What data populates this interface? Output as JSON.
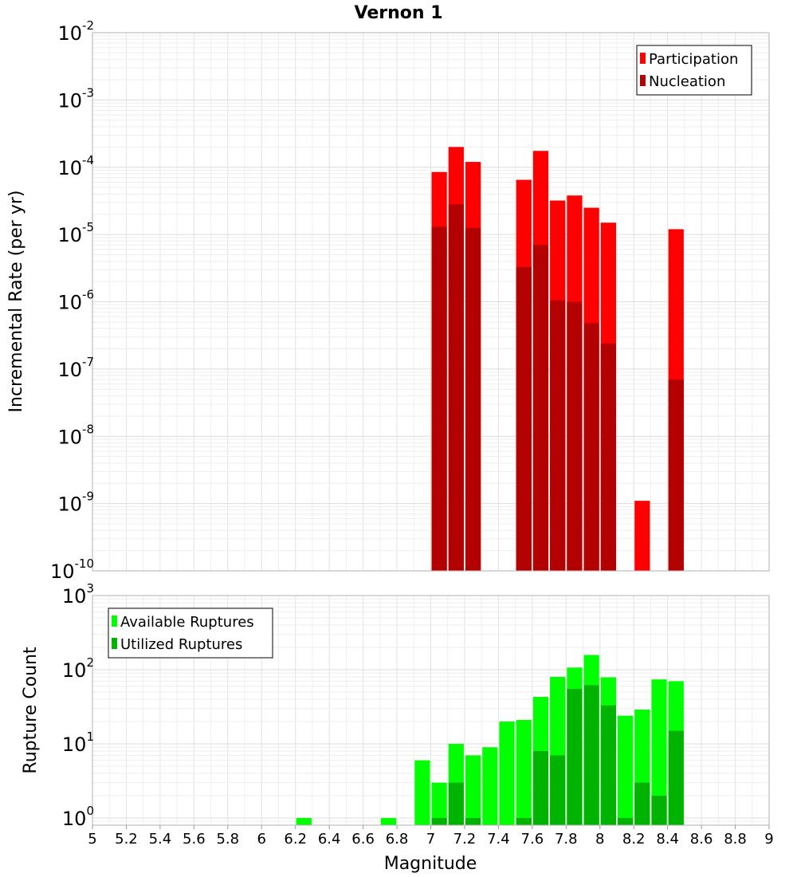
{
  "chart_data": [
    {
      "type": "bar",
      "title": "Vernon 1",
      "xlabel": "",
      "ylabel": "Incremental Rate (per yr)",
      "yscale": "log",
      "ylim": [
        1e-10,
        0.01
      ],
      "xlim": [
        5,
        9
      ],
      "ytick_labels": [
        {
          "base": "10",
          "exp": "-10"
        },
        {
          "base": "10",
          "exp": "-9"
        },
        {
          "base": "10",
          "exp": "-8"
        },
        {
          "base": "10",
          "exp": "-7"
        },
        {
          "base": "10",
          "exp": "-6"
        },
        {
          "base": "10",
          "exp": "-5"
        },
        {
          "base": "10",
          "exp": "-4"
        },
        {
          "base": "10",
          "exp": "-3"
        },
        {
          "base": "10",
          "exp": "-2"
        }
      ],
      "legend_position": "top-right",
      "series": [
        {
          "name": "Participation",
          "color": "#ff0000",
          "points": [
            {
              "x": 7.05,
              "y": 8.5e-05
            },
            {
              "x": 7.15,
              "y": 0.0002
            },
            {
              "x": 7.25,
              "y": 0.00012
            },
            {
              "x": 7.55,
              "y": 6.5e-05
            },
            {
              "x": 7.65,
              "y": 0.000175
            },
            {
              "x": 7.75,
              "y": 3.2e-05
            },
            {
              "x": 7.85,
              "y": 3.8e-05
            },
            {
              "x": 7.95,
              "y": 2.5e-05
            },
            {
              "x": 8.05,
              "y": 1.5e-05
            },
            {
              "x": 8.25,
              "y": 1.1e-09
            },
            {
              "x": 8.45,
              "y": 1.2e-05
            }
          ]
        },
        {
          "name": "Nucleation",
          "color": "#b30000",
          "points": [
            {
              "x": 7.05,
              "y": 1.3e-05
            },
            {
              "x": 7.15,
              "y": 2.8e-05
            },
            {
              "x": 7.25,
              "y": 1.25e-05
            },
            {
              "x": 7.55,
              "y": 3.3e-06
            },
            {
              "x": 7.65,
              "y": 7e-06
            },
            {
              "x": 7.75,
              "y": 1.05e-06
            },
            {
              "x": 7.85,
              "y": 1e-06
            },
            {
              "x": 7.95,
              "y": 4.8e-07
            },
            {
              "x": 8.05,
              "y": 2.4e-07
            },
            {
              "x": 8.45,
              "y": 7e-08
            }
          ]
        }
      ]
    },
    {
      "type": "bar",
      "title": "",
      "xlabel": "Magnitude",
      "ylabel": "Rupture Count",
      "yscale": "log",
      "ylim": [
        0.8,
        1000
      ],
      "xlim": [
        5,
        9
      ],
      "xticks": [
        5,
        5.2,
        5.4,
        5.6,
        5.8,
        6,
        6.2,
        6.4,
        6.6,
        6.8,
        7,
        7.2,
        7.4,
        7.6,
        7.8,
        8,
        8.2,
        8.4,
        8.6,
        8.8,
        9
      ],
      "xtick_labels": [
        "5",
        "5.2",
        "5.4",
        "5.6",
        "5.8",
        "6",
        "6.2",
        "6.4",
        "6.6",
        "6.8",
        "7",
        "7.2",
        "7.4",
        "7.6",
        "7.8",
        "8",
        "8.2",
        "8.4",
        "8.6",
        "8.8",
        "9"
      ],
      "ytick_labels": [
        {
          "base": "10",
          "exp": "0"
        },
        {
          "base": "10",
          "exp": "1"
        },
        {
          "base": "10",
          "exp": "2"
        },
        {
          "base": "10",
          "exp": "3"
        }
      ],
      "legend_position": "top-left",
      "series": [
        {
          "name": "Available Ruptures",
          "color": "#00ff00",
          "points": [
            {
              "x": 6.25,
              "y": 1
            },
            {
              "x": 6.75,
              "y": 1
            },
            {
              "x": 6.95,
              "y": 6
            },
            {
              "x": 7.05,
              "y": 3
            },
            {
              "x": 7.15,
              "y": 10
            },
            {
              "x": 7.25,
              "y": 7
            },
            {
              "x": 7.35,
              "y": 9
            },
            {
              "x": 7.45,
              "y": 20
            },
            {
              "x": 7.55,
              "y": 21
            },
            {
              "x": 7.65,
              "y": 43
            },
            {
              "x": 7.75,
              "y": 80
            },
            {
              "x": 7.85,
              "y": 107
            },
            {
              "x": 7.95,
              "y": 158
            },
            {
              "x": 8.05,
              "y": 79
            },
            {
              "x": 8.15,
              "y": 24
            },
            {
              "x": 8.25,
              "y": 29
            },
            {
              "x": 8.35,
              "y": 74
            },
            {
              "x": 8.45,
              "y": 70
            }
          ]
        },
        {
          "name": "Utilized Ruptures",
          "color": "#00b300",
          "points": [
            {
              "x": 7.05,
              "y": 1
            },
            {
              "x": 7.15,
              "y": 3
            },
            {
              "x": 7.25,
              "y": 1
            },
            {
              "x": 7.55,
              "y": 1
            },
            {
              "x": 7.65,
              "y": 8
            },
            {
              "x": 7.75,
              "y": 7
            },
            {
              "x": 7.85,
              "y": 55
            },
            {
              "x": 7.95,
              "y": 62
            },
            {
              "x": 8.05,
              "y": 33
            },
            {
              "x": 8.15,
              "y": 1
            },
            {
              "x": 8.25,
              "y": 3
            },
            {
              "x": 8.35,
              "y": 2
            },
            {
              "x": 8.45,
              "y": 15
            }
          ]
        }
      ]
    }
  ]
}
